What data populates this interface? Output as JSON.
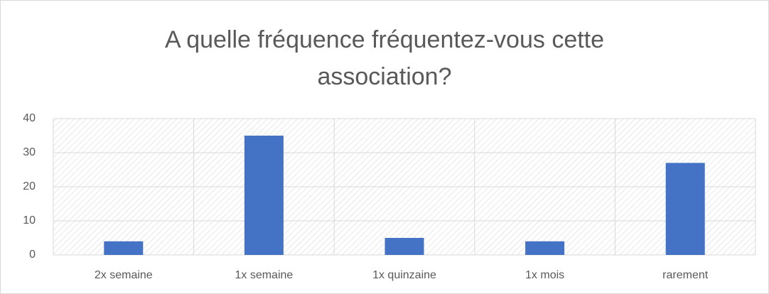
{
  "chart_data": {
    "type": "bar",
    "title": "A quelle fréquence fréquentez-vous cette association?",
    "categories": [
      "2x semaine",
      "1x semaine",
      "1x quinzaine",
      "1x mois",
      "rarement"
    ],
    "values": [
      4,
      35,
      5,
      4,
      27
    ],
    "color": "#4472c4",
    "ylim": [
      0,
      40
    ],
    "yticks": [
      0,
      10,
      20,
      30,
      40
    ],
    "grid": true
  }
}
